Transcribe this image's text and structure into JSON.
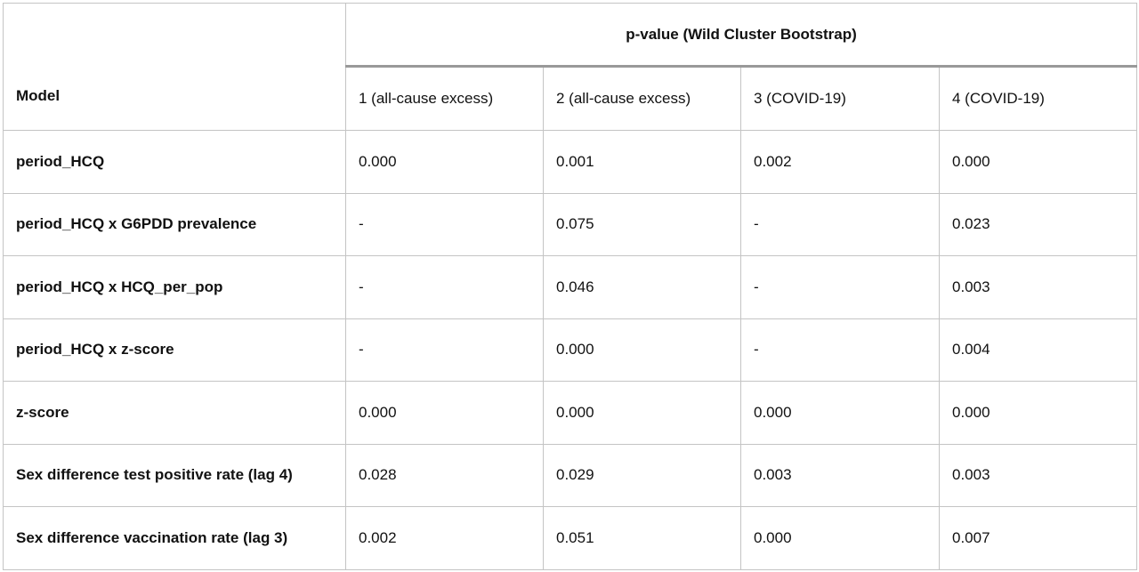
{
  "table": {
    "header": {
      "model": "Model",
      "group": "p-value (Wild Cluster Bootstrap)",
      "columns": [
        "1 (all-cause excess)",
        "2 (all-cause excess)",
        "3 (COVID-19)",
        "4 (COVID-19)"
      ]
    },
    "rows": [
      {
        "label": "period_HCQ",
        "values": [
          "0.000",
          "0.001",
          "0.002",
          "0.000"
        ]
      },
      {
        "label": "period_HCQ x G6PDD prevalence",
        "values": [
          "-",
          "0.075",
          "-",
          "0.023"
        ]
      },
      {
        "label": "period_HCQ x HCQ_per_pop",
        "values": [
          "-",
          "0.046",
          "-",
          "0.003"
        ]
      },
      {
        "label": "period_HCQ x z-score",
        "values": [
          "-",
          "0.000",
          "-",
          "0.004"
        ]
      },
      {
        "label": "z-score",
        "values": [
          "0.000",
          "0.000",
          "0.000",
          "0.000"
        ]
      },
      {
        "label": "Sex difference test positive rate (lag 4)",
        "values": [
          "0.028",
          "0.029",
          "0.003",
          "0.003"
        ]
      },
      {
        "label": "Sex difference vaccination rate (lag 3)",
        "values": [
          "0.002",
          "0.051",
          "0.000",
          "0.007"
        ]
      }
    ]
  }
}
